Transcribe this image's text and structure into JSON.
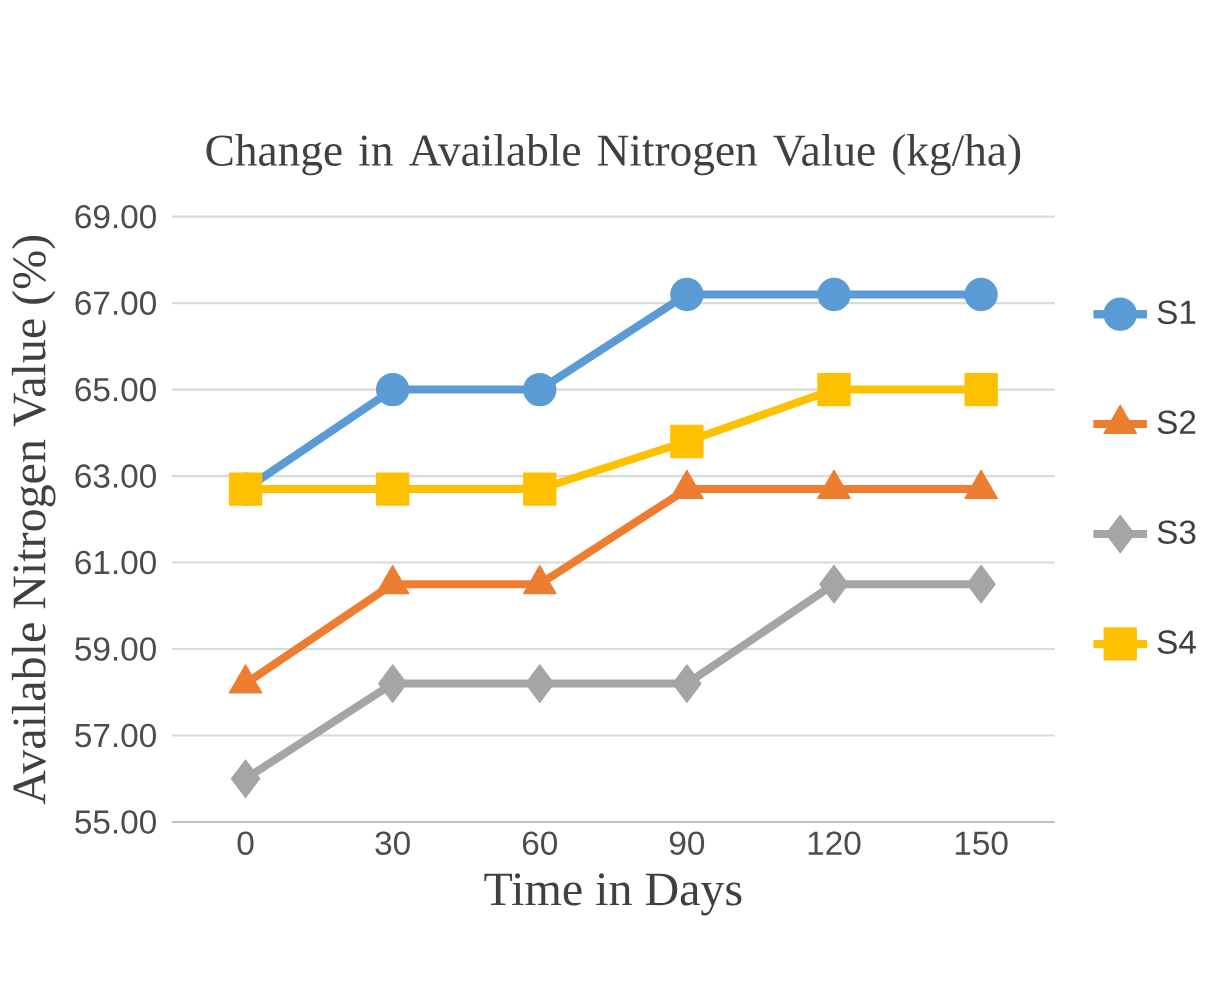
{
  "chart_data": {
    "type": "line",
    "title": "Change in Available Nitrogen Value (kg/ha)",
    "xlabel": "Time in Days",
    "ylabel": "Available Nitrogen Value (%)",
    "categories": [
      "0",
      "30",
      "60",
      "90",
      "120",
      "150"
    ],
    "ylim": [
      55,
      69
    ],
    "yticks": [
      {
        "value": 55,
        "label": "55.00"
      },
      {
        "value": 57,
        "label": "57.00"
      },
      {
        "value": 59,
        "label": "59.00"
      },
      {
        "value": 61,
        "label": "61.00"
      },
      {
        "value": 63,
        "label": "63.00"
      },
      {
        "value": 65,
        "label": "65.00"
      },
      {
        "value": 67,
        "label": "67.00"
      },
      {
        "value": 69,
        "label": "69.00"
      }
    ],
    "grid": "y",
    "legend": "right",
    "series": [
      {
        "name": "S1",
        "color": "#5b9bd5",
        "marker": "circle",
        "values": [
          62.7,
          65.0,
          65.0,
          67.2,
          67.2,
          67.2
        ]
      },
      {
        "name": "S2",
        "color": "#ed7d31",
        "marker": "triangle",
        "values": [
          58.2,
          60.5,
          60.5,
          62.7,
          62.7,
          62.7
        ]
      },
      {
        "name": "S3",
        "color": "#a5a5a5",
        "marker": "diamond",
        "values": [
          56.0,
          58.2,
          58.2,
          58.2,
          60.5,
          60.5
        ]
      },
      {
        "name": "S4",
        "color": "#ffc000",
        "marker": "square",
        "values": [
          62.7,
          62.7,
          62.7,
          63.8,
          65.0,
          65.0
        ]
      }
    ]
  }
}
